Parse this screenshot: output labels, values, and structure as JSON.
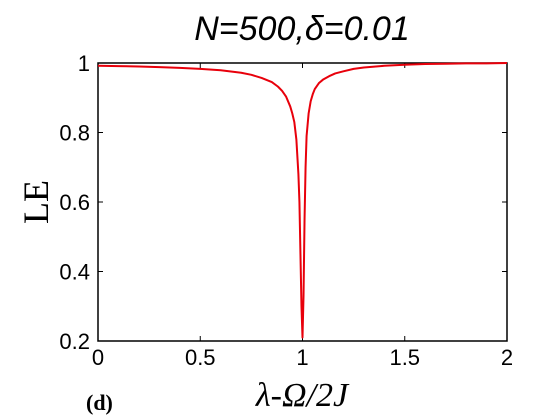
{
  "chart_data": {
    "type": "line",
    "title": "N=500,δ=0.01",
    "xlabel": "λ-Ω/2J",
    "ylabel": "LE",
    "panel_label": "(d)",
    "xlim": [
      0,
      2
    ],
    "ylim": [
      0.2,
      1.0
    ],
    "x_ticks": [
      "0",
      "0.5",
      "1",
      "1.5",
      "2"
    ],
    "y_ticks": [
      "0.2",
      "0.4",
      "0.6",
      "0.8",
      "1"
    ],
    "grid": false,
    "line_color": "#e8000b",
    "series": [
      {
        "x": [
          0,
          0.1,
          0.2,
          0.3,
          0.4,
          0.5,
          0.6,
          0.7,
          0.75,
          0.8,
          0.85,
          0.88,
          0.9,
          0.92,
          0.94,
          0.95,
          0.96,
          0.97,
          0.98,
          0.985,
          0.99,
          0.995,
          1.0,
          1.005,
          1.01,
          1.015,
          1.02,
          1.03,
          1.04,
          1.05,
          1.06,
          1.08,
          1.1,
          1.13,
          1.16,
          1.2,
          1.25,
          1.3,
          1.4,
          1.5,
          1.6,
          1.7,
          1.8,
          1.9,
          2.0
        ],
        "y": [
          0.992,
          0.991,
          0.99,
          0.988,
          0.986,
          0.983,
          0.979,
          0.972,
          0.966,
          0.957,
          0.945,
          0.932,
          0.92,
          0.903,
          0.875,
          0.855,
          0.83,
          0.78,
          0.68,
          0.6,
          0.45,
          0.3,
          0.21,
          0.33,
          0.55,
          0.7,
          0.79,
          0.855,
          0.89,
          0.91,
          0.925,
          0.942,
          0.952,
          0.962,
          0.97,
          0.976,
          0.983,
          0.987,
          0.992,
          0.995,
          0.997,
          0.998,
          0.999,
          0.999,
          1.0
        ]
      }
    ]
  }
}
